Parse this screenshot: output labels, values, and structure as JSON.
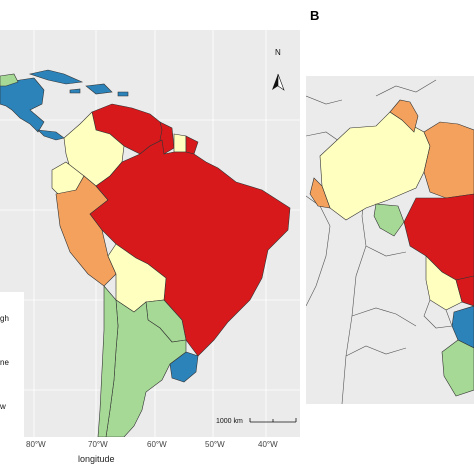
{
  "panels": {
    "b_letter": "B"
  },
  "map_a": {
    "north_label": "N",
    "scale_label": "1000 km",
    "x_ticks": [
      "80°W",
      "70°W",
      "60°W",
      "50°W",
      "40°W"
    ],
    "x_axis_title": "longitude",
    "legend_fragments": [
      "gh",
      "ne",
      "w"
    ]
  },
  "colors": {
    "red": "#d7191c",
    "orange": "#f4a15d",
    "pale_yellow": "#ffffbf",
    "light_green": "#a6d996",
    "blue": "#2b83ba",
    "panel_bg": "#ebebeb",
    "neutral_land": "#ebebeb"
  }
}
